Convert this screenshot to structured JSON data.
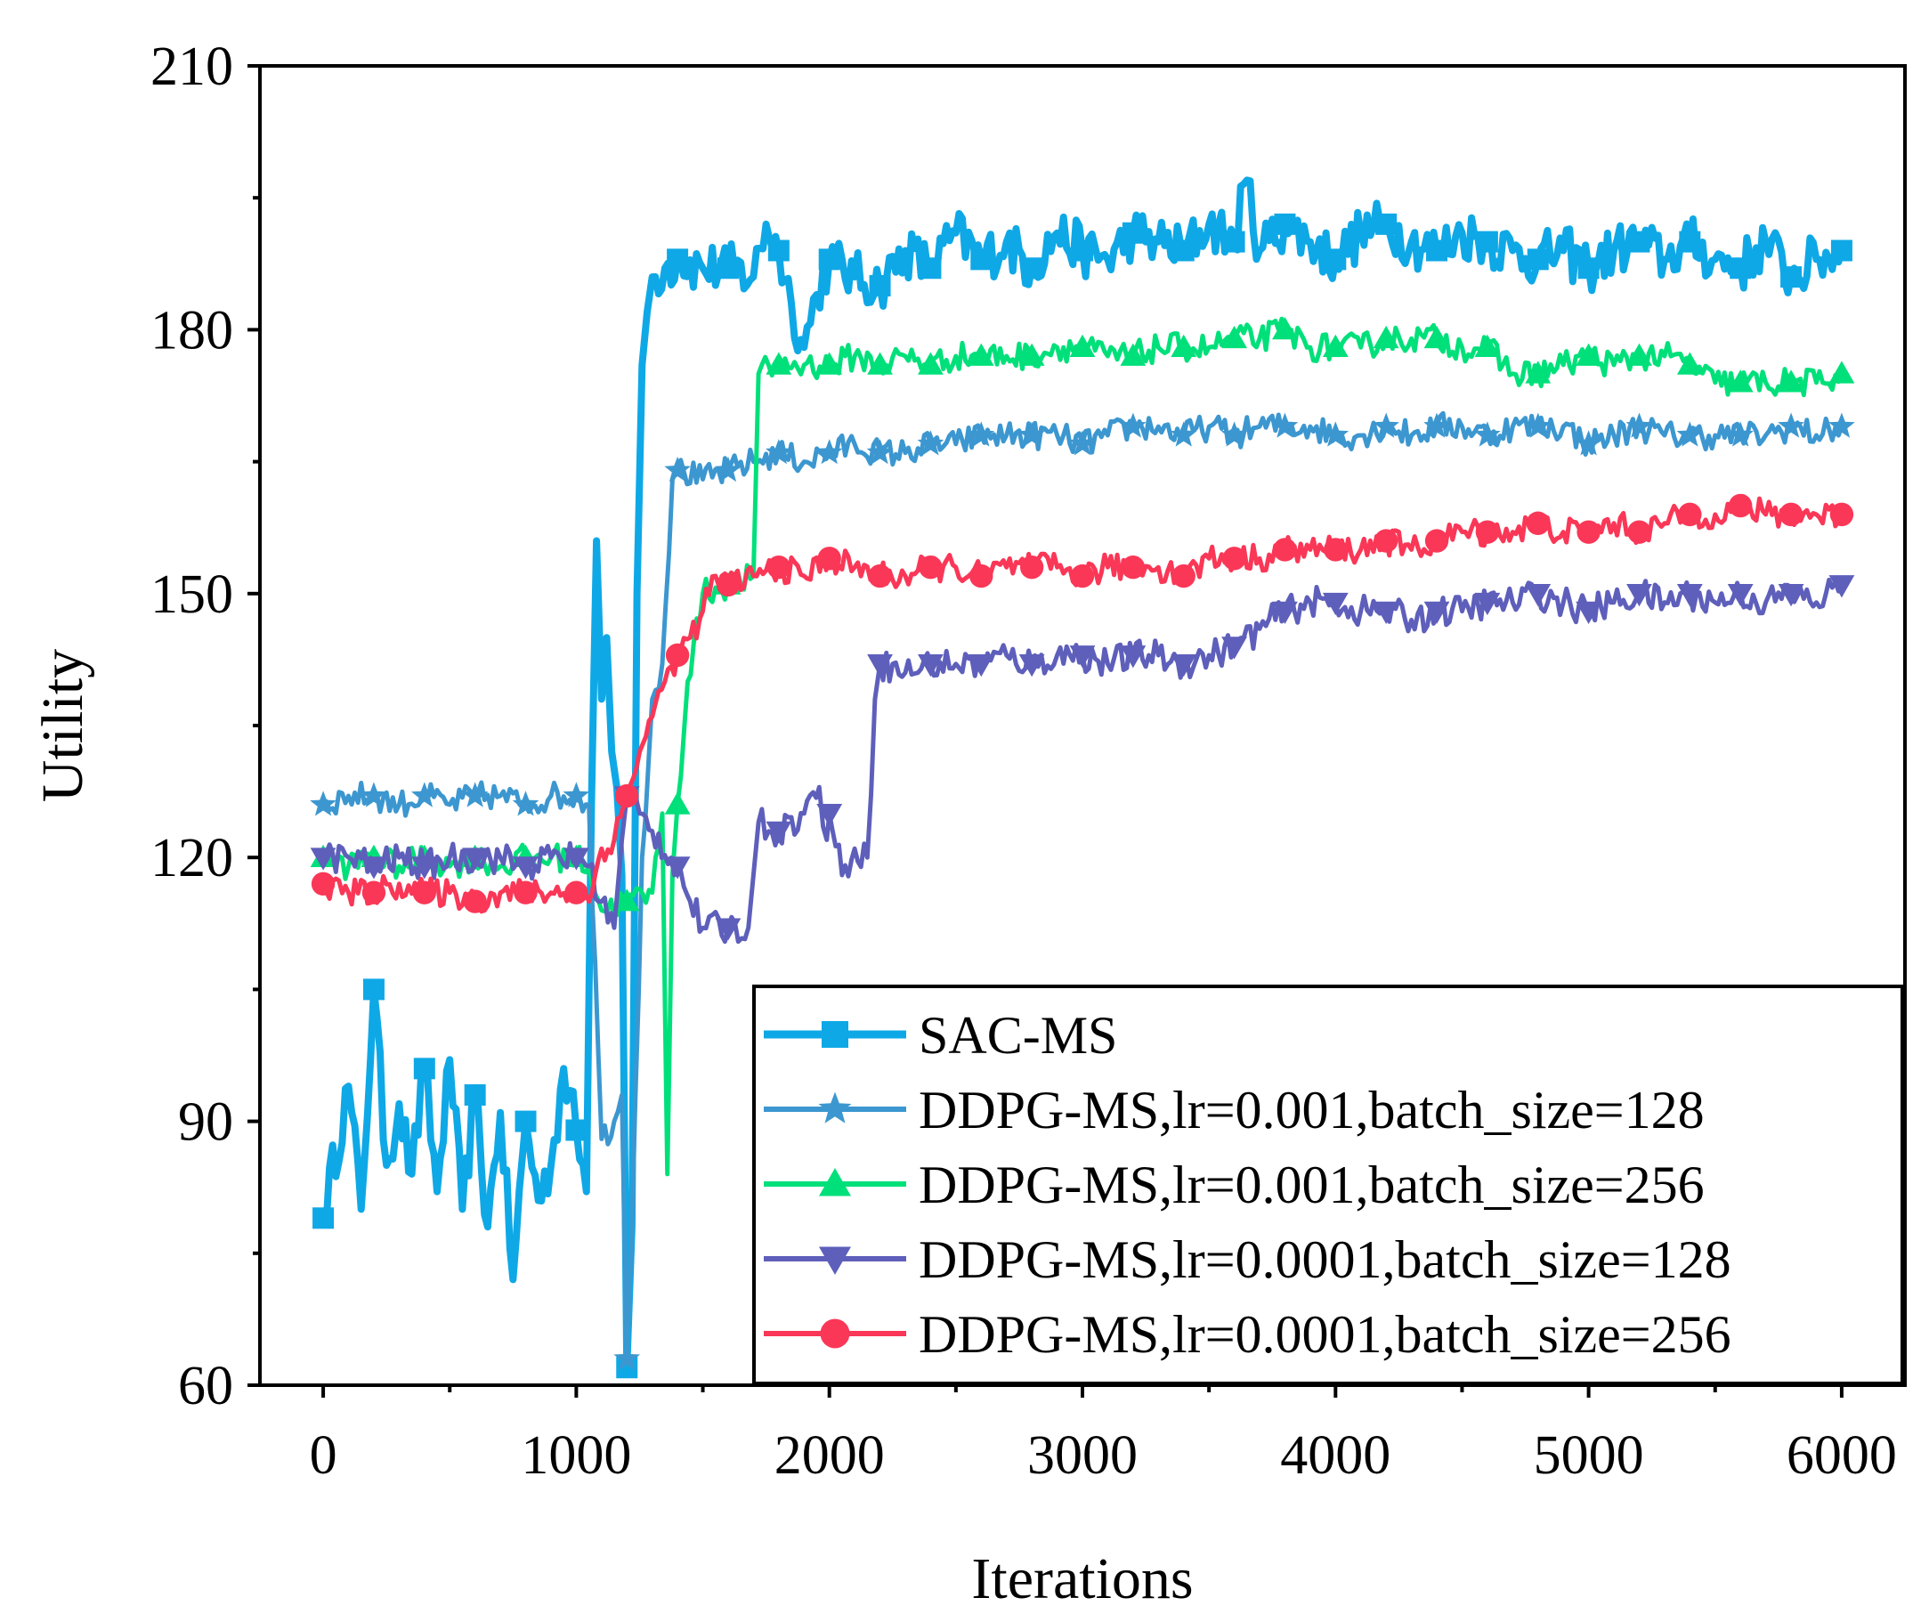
{
  "chart_data": {
    "type": "line",
    "title": "",
    "xlabel": "Iterations",
    "ylabel": "Utility",
    "xlim": [
      -250,
      6250
    ],
    "ylim": [
      60,
      210
    ],
    "xticks": [
      0,
      1000,
      2000,
      3000,
      4000,
      5000,
      6000
    ],
    "yticks": [
      60,
      90,
      120,
      150,
      180,
      210
    ],
    "xtick_labels": [
      "0",
      "1000",
      "2000",
      "3000",
      "4000",
      "5000",
      "6000"
    ],
    "ytick_labels": [
      "60",
      "90",
      "120",
      "150",
      "180",
      "210"
    ],
    "grid": false,
    "legend_position": "bottom-right",
    "series": [
      {
        "name": "SAC-MS",
        "color": "#0fa8e6",
        "marker": "square",
        "x": [
          0,
          100,
          150,
          200,
          250,
          300,
          350,
          400,
          450,
          500,
          550,
          600,
          650,
          700,
          750,
          800,
          850,
          900,
          950,
          1000,
          1040,
          1060,
          1080,
          1100,
          1120,
          1140,
          1160,
          1180,
          1200,
          1220,
          1240,
          1260,
          1280,
          1300,
          1350,
          1400,
          1500,
          1600,
          1700,
          1750,
          1800,
          1850,
          1900,
          1950,
          2000,
          2100,
          2200,
          2300,
          2400,
          2500,
          2600,
          2700,
          2800,
          2900,
          3000,
          3100,
          3200,
          3300,
          3400,
          3500,
          3600,
          3650,
          3700,
          3800,
          3900,
          4000,
          4100,
          4200,
          4300,
          4400,
          4500,
          4600,
          4700,
          4800,
          4900,
          5000,
          5100,
          5200,
          5300,
          5400,
          5500,
          5600,
          5700,
          5800,
          5900,
          6000
        ],
        "values": [
          79,
          94,
          80,
          105,
          85,
          92,
          84,
          96,
          82,
          97,
          80,
          93,
          78,
          91,
          72,
          90,
          81,
          85,
          96,
          89,
          82,
          126,
          156,
          138,
          145,
          132,
          128,
          118,
          62,
          78,
          150,
          176,
          182,
          186,
          187,
          188,
          187,
          187,
          186,
          192,
          189,
          183,
          178,
          184,
          188,
          186,
          185,
          189,
          187,
          191,
          188,
          190,
          187,
          191,
          189,
          188,
          191,
          190,
          189,
          192,
          190,
          197,
          189,
          192,
          190,
          188,
          191,
          192,
          190,
          189,
          191,
          190,
          189,
          188,
          189,
          187,
          189,
          190,
          188,
          190,
          188,
          187,
          190,
          186,
          188,
          189
        ]
      },
      {
        "name": "DDPG-MS,lr=0.001,batch_size=128",
        "color": "#3c97d0",
        "marker": "star",
        "x": [
          0,
          100,
          200,
          300,
          400,
          500,
          600,
          700,
          800,
          900,
          1000,
          1050,
          1100,
          1150,
          1180,
          1200,
          1220,
          1260,
          1300,
          1340,
          1380,
          1400,
          1500,
          1600,
          1700,
          1800,
          1900,
          2000,
          2100,
          2200,
          2300,
          2400,
          2500,
          2600,
          2700,
          2800,
          2900,
          3000,
          3100,
          3200,
          3300,
          3400,
          3500,
          3600,
          3700,
          3800,
          3900,
          4000,
          4100,
          4200,
          4300,
          4400,
          4500,
          4600,
          4700,
          4800,
          4900,
          5000,
          5100,
          5200,
          5300,
          5400,
          5500,
          5600,
          5700,
          5800,
          5900,
          6000
        ],
        "values": [
          126,
          127,
          127,
          126,
          127,
          126,
          127,
          127,
          126,
          127,
          127,
          126,
          88,
          90,
          93,
          63,
          78,
          120,
          138,
          142,
          163,
          164,
          163,
          164,
          165,
          166,
          165,
          166,
          167,
          166,
          166,
          167,
          167,
          168,
          168,
          168,
          168,
          167,
          168,
          169,
          169,
          168,
          169,
          168,
          169,
          169,
          169,
          168,
          168,
          169,
          168,
          169,
          169,
          168,
          169,
          169,
          169,
          167,
          168,
          169,
          168,
          168,
          168,
          168,
          168,
          169,
          168,
          169
        ]
      },
      {
        "name": "DDPG-MS,lr=0.001,batch_size=256",
        "color": "#00e07a",
        "marker": "triangle-up",
        "x": [
          0,
          100,
          200,
          300,
          400,
          500,
          600,
          700,
          800,
          900,
          1000,
          1050,
          1100,
          1200,
          1300,
          1340,
          1360,
          1380,
          1400,
          1440,
          1500,
          1600,
          1700,
          1720,
          1800,
          1900,
          2000,
          2100,
          2200,
          2300,
          2400,
          2500,
          2600,
          2700,
          2800,
          2900,
          3000,
          3100,
          3200,
          3300,
          3400,
          3500,
          3600,
          3700,
          3800,
          3900,
          4000,
          4100,
          4200,
          4300,
          4400,
          4500,
          4600,
          4700,
          4800,
          4900,
          5000,
          5100,
          5200,
          5300,
          5400,
          5500,
          5600,
          5700,
          5800,
          5900,
          6000
        ],
        "values": [
          120,
          119,
          120,
          119,
          120,
          119,
          120,
          119,
          120,
          120,
          120,
          119,
          114,
          115,
          116,
          125,
          84,
          118,
          126,
          140,
          150,
          151,
          152,
          175,
          176,
          176,
          176,
          177,
          176,
          177,
          176,
          177,
          177,
          177,
          177,
          178,
          178,
          177,
          177,
          178,
          178,
          178,
          179,
          179,
          180,
          178,
          178,
          178,
          179,
          179,
          179,
          178,
          178,
          175,
          175,
          176,
          177,
          176,
          177,
          177,
          176,
          174,
          174,
          174,
          174,
          174,
          175
        ]
      },
      {
        "name": "DDPG-MS,lr=0.0001,batch_size=128",
        "color": "#5e5fbb",
        "marker": "triangle-down",
        "x": [
          0,
          100,
          200,
          300,
          400,
          500,
          600,
          700,
          800,
          900,
          1000,
          1050,
          1100,
          1150,
          1180,
          1200,
          1250,
          1300,
          1400,
          1450,
          1500,
          1600,
          1680,
          1700,
          1720,
          1800,
          1900,
          1960,
          1990,
          2000,
          2050,
          2100,
          2150,
          2180,
          2200,
          2300,
          2400,
          2500,
          2600,
          2700,
          2800,
          2900,
          3000,
          3100,
          3200,
          3300,
          3400,
          3500,
          3600,
          3700,
          3800,
          3900,
          4000,
          4100,
          4200,
          4300,
          4400,
          4500,
          4600,
          4700,
          4800,
          4900,
          5000,
          5100,
          5200,
          5300,
          5400,
          5500,
          5600,
          5700,
          5800,
          5900,
          6000
        ],
        "values": [
          120,
          120,
          119,
          120,
          119,
          120,
          120,
          120,
          119,
          120,
          120,
          119,
          115,
          112,
          122,
          127,
          125,
          123,
          119,
          115,
          112,
          112,
          112,
          118,
          124,
          123,
          125,
          128,
          122,
          125,
          118,
          121,
          120,
          138,
          142,
          141,
          142,
          142,
          142,
          143,
          142,
          143,
          143,
          142,
          143,
          143,
          142,
          143,
          144,
          146,
          148,
          149,
          149,
          148,
          148,
          147,
          148,
          148,
          149,
          149,
          150,
          149,
          148,
          149,
          150,
          149,
          150,
          149,
          150,
          149,
          150,
          149,
          151
        ]
      },
      {
        "name": "DDPG-MS,lr=0.0001,batch_size=256",
        "color": "#fa3757",
        "marker": "circle",
        "x": [
          0,
          100,
          200,
          300,
          400,
          500,
          600,
          700,
          800,
          900,
          1000,
          1050,
          1100,
          1150,
          1200,
          1250,
          1300,
          1350,
          1400,
          1450,
          1500,
          1550,
          1600,
          1700,
          1800,
          1900,
          2000,
          2100,
          2200,
          2300,
          2400,
          2500,
          2600,
          2700,
          2800,
          2900,
          3000,
          3100,
          3200,
          3300,
          3400,
          3500,
          3600,
          3700,
          3800,
          3900,
          4000,
          4100,
          4200,
          4300,
          4400,
          4500,
          4600,
          4700,
          4800,
          4900,
          5000,
          5100,
          5200,
          5300,
          5400,
          5500,
          5600,
          5700,
          5800,
          5900,
          6000
        ],
        "values": [
          117,
          116,
          116,
          117,
          116,
          116,
          115,
          116,
          116,
          116,
          116,
          115,
          121,
          122,
          127,
          132,
          136,
          140,
          143,
          145,
          148,
          152,
          151,
          152,
          153,
          152,
          154,
          153,
          152,
          152,
          153,
          153,
          152,
          153,
          153,
          153,
          152,
          153,
          153,
          153,
          152,
          154,
          154,
          154,
          155,
          155,
          155,
          155,
          156,
          155,
          156,
          157,
          157,
          157,
          158,
          157,
          157,
          158,
          157,
          158,
          159,
          159,
          160,
          159,
          159,
          159,
          159
        ]
      }
    ]
  }
}
